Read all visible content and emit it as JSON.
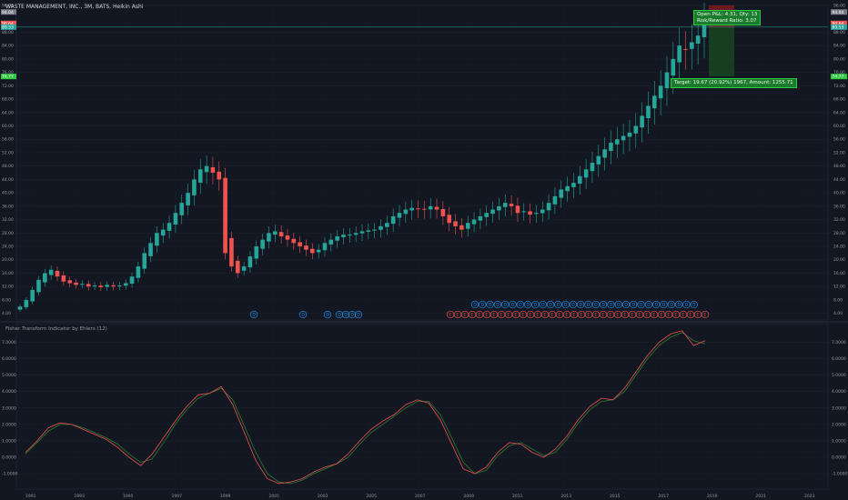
{
  "header": {
    "title": "WASTE MANAGEMENT, INC., 3M, BATS, Heikin Ashi"
  },
  "indicator": {
    "title": "Fisher Transform Indicator by Ehlers (12)"
  },
  "position": {
    "open_pnl": "Open P&L: 4.31, Qty: 13",
    "risk_reward": "Risk/Reward Ratio: 3.07",
    "target": "Target: 19.67 (20.92%) 1967, Amount: 1255.71"
  },
  "colors": {
    "background": "#131722",
    "up": "#26a69a",
    "down": "#ef5350",
    "fisher": "#ef5350",
    "trigger": "#2e7d32",
    "profit_zone": "#1b5e20",
    "loss_zone": "#b71c1c",
    "entry_line": "#26a69a"
  },
  "price_axis": {
    "ticks": [
      "96.00",
      "88.00",
      "84.00",
      "80.00",
      "76.00",
      "72.00",
      "68.00",
      "64.00",
      "60.00",
      "56.00",
      "52.00",
      "48.00",
      "44.00",
      "40.00",
      "36.00",
      "32.00",
      "28.00",
      "24.00",
      "20.00",
      "16.00",
      "12.00",
      "8.00",
      "4.00"
    ],
    "tags": [
      {
        "value": "94.04",
        "color": "#787b86"
      },
      {
        "value": "90.64",
        "color": "#ef5350"
      },
      {
        "value": "89.53",
        "color": "#26a69a"
      },
      {
        "value": "74.77",
        "color": "#2ecc40"
      }
    ]
  },
  "fisher_axis": {
    "ticks": [
      "7.0000",
      "6.0000",
      "5.0000",
      "4.0000",
      "3.0000",
      "2.0000",
      "1.0000",
      "0.0000",
      "-1.0000"
    ]
  },
  "time_axis": {
    "labels": [
      "1991",
      "1993",
      "1995",
      "1997",
      "1999",
      "2001",
      "2003",
      "2005",
      "2007",
      "2009",
      "2011",
      "2013",
      "2015",
      "2017",
      "2019",
      "2021",
      "2023"
    ]
  },
  "markers": {
    "blue_letter": "D",
    "red_letter": "E",
    "blue_upper_count": 30,
    "red_lower_count": 36
  },
  "chart_data": {
    "type": "candlestick",
    "title": "WASTE MANAGEMENT, INC., 3M, BATS, Heikin Ashi",
    "timeframe": "3M",
    "x_range": [
      "1991",
      "2024"
    ],
    "y_range": [
      2,
      96
    ],
    "closes": [
      6,
      8,
      11,
      14,
      16,
      17,
      15,
      13.5,
      13,
      12.5,
      12.8,
      12,
      12.3,
      11.8,
      12.5,
      12,
      12.3,
      13,
      15,
      18,
      22,
      25,
      28,
      29,
      31,
      34,
      37,
      40,
      44,
      47,
      48,
      46,
      44,
      22,
      18,
      16,
      18,
      21,
      24,
      26,
      28,
      28.5,
      27,
      26,
      25,
      24,
      23,
      22,
      23,
      25,
      26,
      27,
      27.5,
      27.5,
      28,
      28.5,
      28.8,
      29,
      30,
      31,
      33,
      34,
      35,
      35.5,
      35.2,
      35,
      36,
      35,
      33,
      31,
      30,
      29,
      31,
      32,
      33,
      34,
      35,
      36,
      37,
      36,
      34,
      34.5,
      33.5,
      34,
      35,
      37,
      39,
      41,
      42,
      43,
      45,
      47,
      49,
      51,
      53,
      55,
      56,
      57,
      58,
      60,
      63,
      66,
      69,
      72,
      76,
      80,
      84,
      83,
      85,
      87,
      91
    ],
    "fisher": [
      0.3,
      1.0,
      1.8,
      2.1,
      2.0,
      1.7,
      1.4,
      1.1,
      0.6,
      0.0,
      -0.5,
      0.2,
      1.2,
      2.2,
      3.1,
      3.8,
      3.9,
      4.3,
      3.2,
      1.5,
      -0.2,
      -1.3,
      -1.6,
      -1.5,
      -1.3,
      -0.9,
      -0.6,
      -0.4,
      0.2,
      1.0,
      1.7,
      2.2,
      2.6,
      3.2,
      3.5,
      3.3,
      2.3,
      0.8,
      -0.7,
      -1.0,
      -0.6,
      0.3,
      0.9,
      0.8,
      0.3,
      0.0,
      0.5,
      1.3,
      2.3,
      3.1,
      3.6,
      3.5,
      4.2,
      5.2,
      6.2,
      7.0,
      7.5,
      7.7,
      6.8,
      7.1
    ],
    "trigger": [
      0.2,
      0.9,
      1.6,
      2.0,
      2.0,
      1.8,
      1.5,
      1.2,
      0.8,
      0.2,
      -0.3,
      -0.1,
      0.9,
      2.0,
      2.9,
      3.6,
      3.9,
      4.2,
      3.5,
      1.9,
      0.3,
      -1.0,
      -1.5,
      -1.6,
      -1.4,
      -1.0,
      -0.7,
      -0.4,
      0.0,
      0.8,
      1.5,
      2.0,
      2.5,
      3.0,
      3.4,
      3.4,
      2.6,
      1.2,
      -0.3,
      -1.0,
      -0.8,
      0.1,
      0.7,
      0.9,
      0.5,
      0.1,
      0.3,
      1.1,
      2.1,
      2.9,
      3.4,
      3.5,
      4.0,
      5.0,
      6.0,
      6.8,
      7.3,
      7.6,
      7.1,
      6.9
    ]
  }
}
